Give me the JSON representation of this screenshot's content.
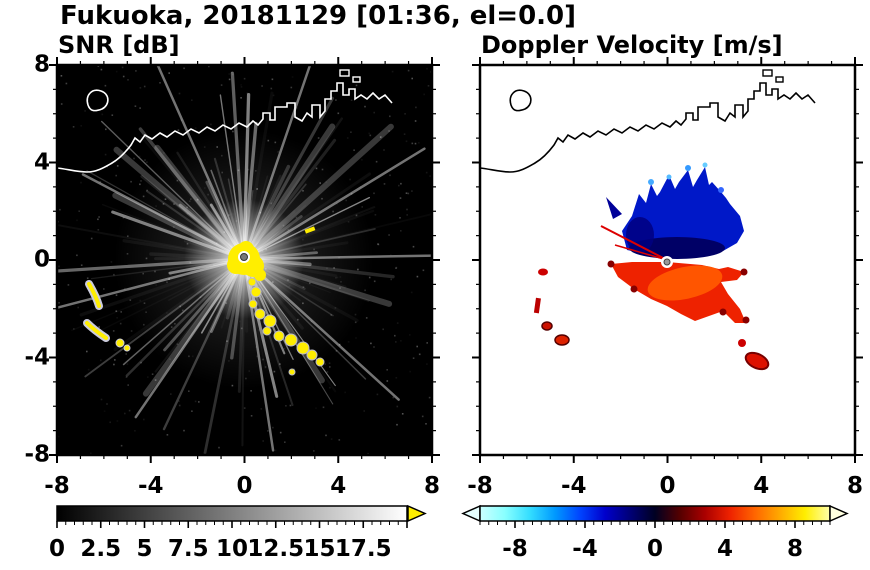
{
  "title": "Fukuoka, 20181129 [01:36, el=0.0]",
  "panels": {
    "snr": {
      "label": "SNR [dB]",
      "x_tick_labels": [
        "-8",
        "-4",
        "0",
        "4",
        "8"
      ],
      "y_tick_labels": [
        "8",
        "4",
        "0",
        "-4",
        "-8"
      ],
      "colorbar": {
        "tick_labels": [
          "0",
          "2.5",
          "5",
          "7.5",
          "10",
          "12.5",
          "15",
          "17.5"
        ],
        "range": [
          0,
          20
        ],
        "colors": [
          "#000000",
          "#ffffff"
        ],
        "over_arrow_color": "#ffee00"
      }
    },
    "doppler": {
      "label": "Doppler Velocity [m/s]",
      "x_tick_labels": [
        "-8",
        "-4",
        "0",
        "4",
        "8"
      ],
      "colorbar": {
        "tick_labels": [
          "-8",
          "-4",
          "0",
          "4",
          "8"
        ],
        "range": [
          -10,
          10
        ],
        "colors": [
          "#ccffff",
          "#88ffff",
          "#33ddff",
          "#0099ff",
          "#0044ff",
          "#0000cc",
          "#000077",
          "#000022",
          "#550000",
          "#aa0000",
          "#ee2200",
          "#ff6600",
          "#ffaa00",
          "#ffee00",
          "#ffffaa"
        ],
        "under_arrow_color": "#e6ffff",
        "over_arrow_color": "#ffffe0"
      }
    }
  },
  "chart_data": [
    {
      "type": "heatmap",
      "title": "SNR [dB]",
      "xlabel": "",
      "ylabel": "",
      "xlim": [
        -8,
        8
      ],
      "ylim": [
        -8,
        8
      ],
      "x_ticks": [
        -8,
        -4,
        0,
        4,
        8
      ],
      "y_ticks": [
        -8,
        -4,
        0,
        4,
        8
      ],
      "colorbar": {
        "ticks": [
          0,
          2.5,
          5,
          7.5,
          10,
          12.5,
          15,
          17.5
        ],
        "range": [
          0,
          20
        ],
        "colormap": "grayscale black to white",
        "over_color": "yellow"
      },
      "background": "near-0 dB black with faint speckle noise",
      "features": [
        {
          "name": "radar-site-cluster",
          "x": 0,
          "y": 0,
          "value": "saturated >17.5 dB (yellow) with bright white glow"
        },
        {
          "name": "ray-artifacts",
          "description": "white radial streaks ~5-12 dB emanating from radar site in all azimuths, length up to 8 km"
        },
        {
          "name": "echo-chain-southeast",
          "value": ">17.5 dB",
          "points": [
            [
              0.4,
              -1.0
            ],
            [
              0.5,
              -1.4
            ],
            [
              0.7,
              -2.2
            ],
            [
              1.1,
              -2.5
            ],
            [
              1.5,
              -3.1
            ],
            [
              2.0,
              -3.3
            ],
            [
              2.5,
              -3.6
            ],
            [
              2.9,
              -3.9
            ],
            [
              1.9,
              -4.6
            ]
          ]
        },
        {
          "name": "echo-arcs-southwest",
          "value": ">17.5 dB with pale fringe",
          "points": [
            [
              -6.6,
              -1.1
            ],
            [
              -6.3,
              -1.9
            ],
            [
              -6.7,
              -2.6
            ],
            [
              -5.9,
              -3.2
            ],
            [
              -5.3,
              -3.4
            ],
            [
              -5.0,
              -3.6
            ]
          ]
        },
        {
          "name": "small-echo-northeast",
          "points": [
            [
              2.8,
              1.2
            ]
          ]
        },
        {
          "name": "coastline",
          "description": "white coastline across upper third, harbor piers upper right, small island upper left"
        }
      ]
    },
    {
      "type": "heatmap",
      "title": "Doppler Velocity [m/s]",
      "xlabel": "",
      "ylabel": "",
      "xlim": [
        -8,
        8
      ],
      "ylim": [
        -8,
        8
      ],
      "x_ticks": [
        -8,
        -4,
        0,
        4,
        8
      ],
      "y_ticks": [
        -8,
        -4,
        0,
        4,
        8
      ],
      "colorbar": {
        "ticks": [
          -8,
          -4,
          0,
          4,
          8
        ],
        "range": [
          -10,
          10
        ],
        "colormap": "cyan-blue-black-red-orange-yellow-white"
      },
      "background": "white (no data)",
      "features": [
        {
          "name": "negative-velocity-lobe",
          "value": "-4 to -10 m/s (blue/navy)",
          "extent": [
            [
              -1.8,
              0.0
            ],
            [
              3.3,
              3.8
            ]
          ],
          "description": "spiky-topped blue lobe north/northeast of radar, darkest navy along its base"
        },
        {
          "name": "positive-velocity-lobe",
          "value": "+3 to +8 m/s (red/orange)",
          "extent": [
            [
              -2.4,
              -2.6
            ],
            [
              3.4,
              0.0
            ]
          ],
          "description": "red-orange lobe south of radar"
        },
        {
          "name": "southeast-wedge",
          "value": "+4 to +8 m/s with dark-red fringe",
          "points": [
            [
              2.5,
              -1.3
            ],
            [
              3.1,
              -2.1
            ],
            [
              3.4,
              -2.7
            ],
            [
              3.8,
              -4.3
            ]
          ]
        },
        {
          "name": "thin-red-rays-northwest",
          "points": [
            [
              -2.8,
              1.4
            ],
            [
              -2.2,
              0.6
            ]
          ]
        },
        {
          "name": "west-spots",
          "value": "positive (red)",
          "points": [
            [
              -5.3,
              -0.5
            ],
            [
              -5.6,
              -1.9
            ],
            [
              -5.1,
              -2.7
            ],
            [
              -4.5,
              -3.3
            ]
          ]
        },
        {
          "name": "radar-site",
          "x": 0,
          "y": 0
        },
        {
          "name": "coastline",
          "description": "black coastline across upper third, harbor piers upper right, small island upper left"
        }
      ]
    }
  ]
}
